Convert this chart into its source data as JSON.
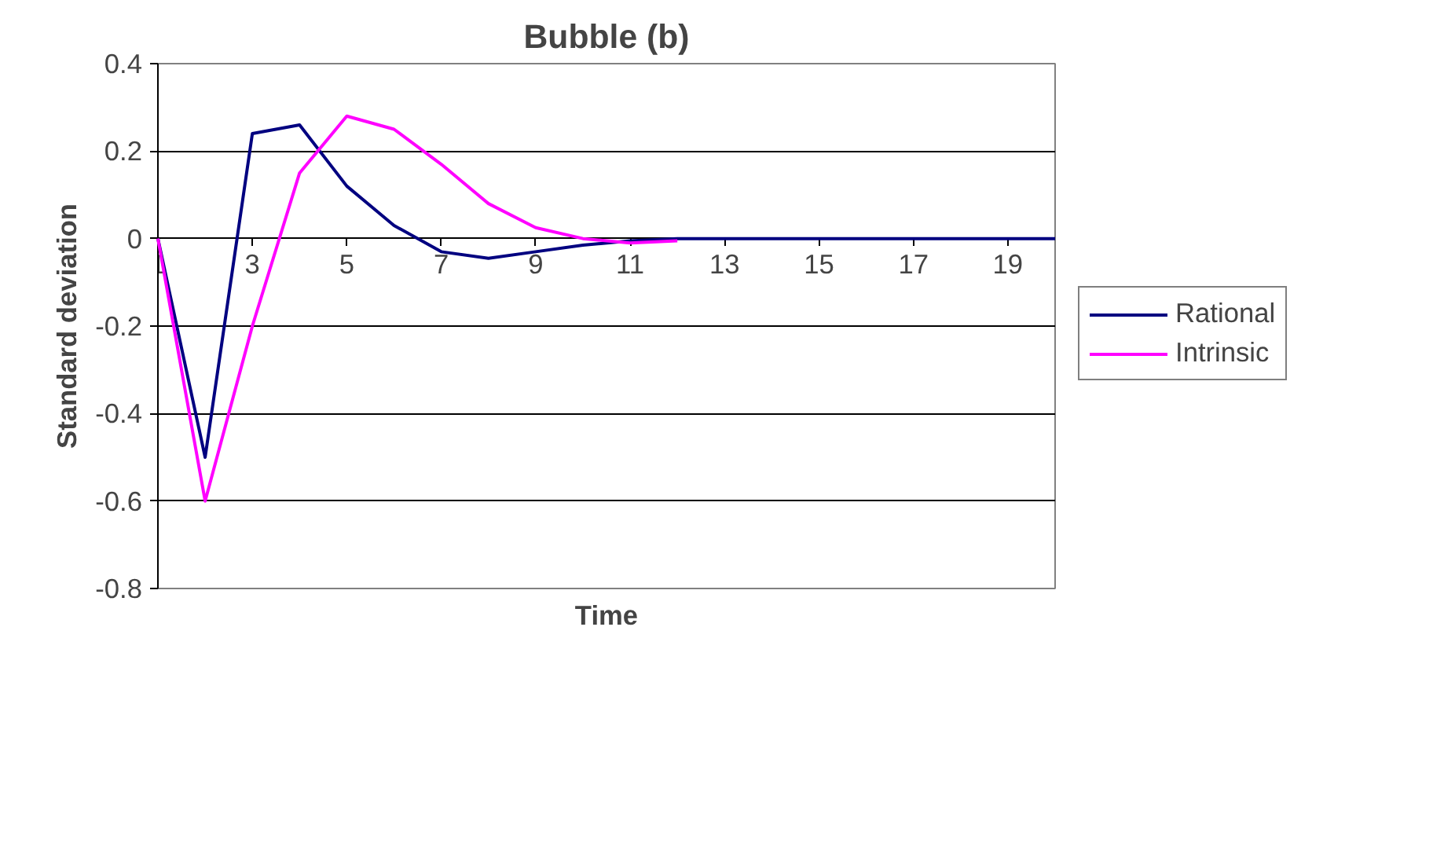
{
  "chart_data": {
    "type": "line",
    "title": "Bubble (b)",
    "xlabel": "Time",
    "ylabel": "Standard deviation",
    "x": [
      1,
      2,
      3,
      4,
      5,
      6,
      7,
      8,
      9,
      10,
      11,
      12,
      13,
      14,
      15,
      16,
      17,
      18,
      19,
      20
    ],
    "xlim": [
      1,
      20
    ],
    "xticks": [
      1,
      3,
      5,
      7,
      9,
      11,
      13,
      15,
      17,
      19
    ],
    "ylim": [
      -0.8,
      0.4
    ],
    "yticks": [
      -0.8,
      -0.6,
      -0.4,
      -0.2,
      0,
      0.2,
      0.4
    ],
    "series": [
      {
        "name": "Rational",
        "color": "#000080",
        "values": [
          0,
          -0.5,
          0.24,
          0.26,
          0.12,
          0.03,
          -0.03,
          -0.045,
          -0.03,
          -0.015,
          -0.005,
          0,
          0,
          0,
          0,
          0,
          0,
          0,
          0,
          0
        ]
      },
      {
        "name": "Intrinsic",
        "color": "#ff00ff",
        "values": [
          0,
          -0.6,
          -0.2,
          0.15,
          0.28,
          0.25,
          0.17,
          0.08,
          0.025,
          0,
          -0.01,
          -0.005,
          null,
          null,
          null,
          null,
          null,
          null,
          null,
          null
        ]
      }
    ],
    "grid": "y",
    "legend": "right",
    "marker": "none",
    "line_style": "solid"
  }
}
